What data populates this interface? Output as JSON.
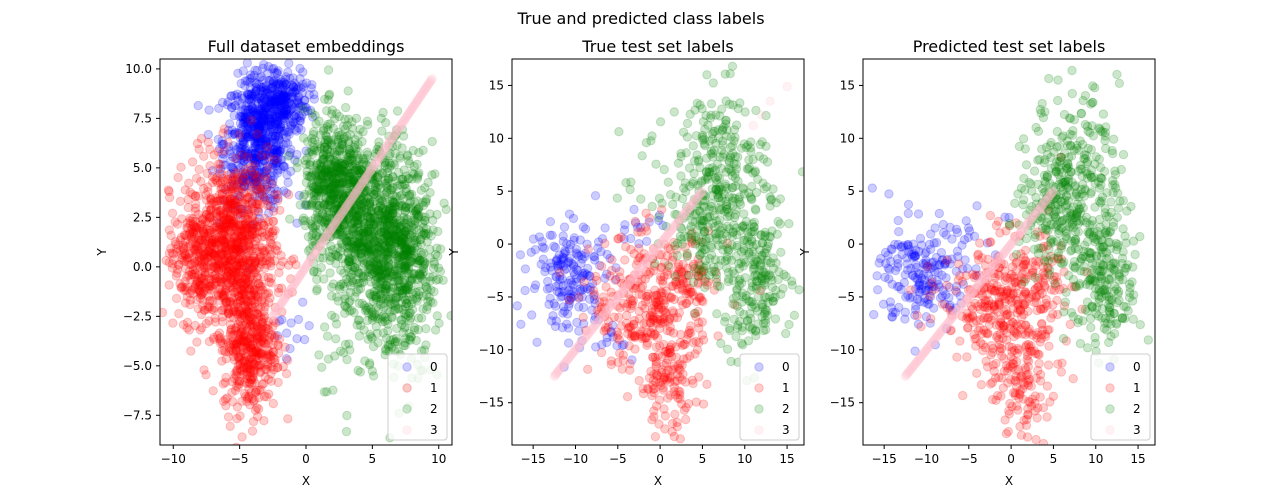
{
  "figure": {
    "suptitle": "True and predicted class labels"
  },
  "colors": {
    "class_0": "#0000ff",
    "class_1": "#ff0000",
    "class_2": "#008000",
    "class_3": "#ffc0cb"
  },
  "chart_data": [
    {
      "type": "scatter",
      "title": "Full dataset embeddings",
      "xlabel": "X",
      "ylabel": "Y",
      "xlim": [
        -11,
        11
      ],
      "ylim": [
        -9,
        10.5
      ],
      "xticks": [
        -10,
        -5,
        0,
        5,
        10
      ],
      "yticks": [
        -7.5,
        -5.0,
        -2.5,
        0.0,
        2.5,
        5.0,
        7.5,
        10.0
      ],
      "ytick_labels": [
        "−7.5",
        "−5.0",
        "−2.5",
        "0.0",
        "2.5",
        "5.0",
        "7.5",
        "10.0"
      ],
      "xtick_labels": [
        "−10",
        "−5",
        "0",
        "5",
        "10"
      ],
      "legend": {
        "placement": "lower-right",
        "entries": [
          "0",
          "1",
          "2",
          "3"
        ]
      },
      "alpha": 0.2,
      "series": [
        {
          "name": "0",
          "clusters": [
            {
              "cx": -3.6,
              "cy": 6.3,
              "sx": 1.3,
              "sy": 1.6,
              "n": 600
            },
            {
              "cx": -2.0,
              "cy": 8.4,
              "sx": 1.1,
              "sy": 0.8,
              "n": 250
            },
            {
              "cx": -1.0,
              "cy": -3.5,
              "sx": 0.9,
              "sy": 0.8,
              "n": 12
            }
          ]
        },
        {
          "name": "1",
          "clusters": [
            {
              "cx": -5.5,
              "cy": 1.0,
              "sx": 1.6,
              "sy": 2.2,
              "n": 900
            },
            {
              "cx": -4.2,
              "cy": -4.0,
              "sx": 1.0,
              "sy": 1.7,
              "n": 400
            },
            {
              "cx": -8.5,
              "cy": 0.5,
              "sx": 0.9,
              "sy": 1.6,
              "n": 200
            }
          ]
        },
        {
          "name": "2",
          "clusters": [
            {
              "cx": 2.2,
              "cy": 4.0,
              "sx": 1.2,
              "sy": 1.8,
              "n": 600
            },
            {
              "cx": 5.5,
              "cy": 1.5,
              "sx": 1.7,
              "sy": 2.3,
              "n": 900
            },
            {
              "cx": 7.5,
              "cy": 0.0,
              "sx": 1.2,
              "sy": 2.4,
              "n": 300
            },
            {
              "cx": 4.0,
              "cy": -4.5,
              "sx": 2.2,
              "sy": 1.6,
              "n": 40
            }
          ]
        },
        {
          "name": "3",
          "line": {
            "x0": -2.5,
            "y0": -2.5,
            "x1": 9.5,
            "y1": 9.5,
            "n": 200
          }
        }
      ]
    },
    {
      "type": "scatter",
      "title": "True test set labels",
      "xlabel": "X",
      "ylabel": "Y",
      "xlim": [
        -17.5,
        17.0
      ],
      "ylim": [
        -19.0,
        17.5
      ],
      "xticks": [
        -15,
        -10,
        -5,
        0,
        5,
        10,
        15
      ],
      "xtick_labels": [
        "−15",
        "−10",
        "−5",
        "0",
        "5",
        "10",
        "15"
      ],
      "yticks": [
        -15,
        -10,
        -5,
        0,
        5,
        10,
        15
      ],
      "ytick_labels": [
        "−15",
        "−10",
        "−5",
        "0",
        "5",
        "10",
        "15"
      ],
      "legend": {
        "placement": "lower-right",
        "entries": [
          "0",
          "1",
          "2",
          "3"
        ]
      },
      "alpha": 0.2,
      "series": [
        {
          "name": "0",
          "clusters": [
            {
              "cx": -10.5,
              "cy": -3.0,
              "sx": 2.5,
              "sy": 2.6,
              "n": 180
            },
            {
              "cx": -3.0,
              "cy": 2.0,
              "sx": 2.2,
              "sy": 1.2,
              "n": 15
            },
            {
              "cx": -6.0,
              "cy": -9.0,
              "sx": 1.5,
              "sy": 1.2,
              "n": 12
            }
          ]
        },
        {
          "name": "1",
          "clusters": [
            {
              "cx": -1.0,
              "cy": -5.5,
              "sx": 3.6,
              "sy": 3.2,
              "n": 320
            },
            {
              "cx": 1.0,
              "cy": -13.0,
              "sx": 1.8,
              "sy": 2.6,
              "n": 120
            },
            {
              "cx": 3.5,
              "cy": -4.0,
              "sx": 1.5,
              "sy": 2.0,
              "n": 40
            }
          ]
        },
        {
          "name": "2",
          "clusters": [
            {
              "cx": 7.5,
              "cy": 6.5,
              "sx": 2.6,
              "sy": 4.0,
              "n": 260
            },
            {
              "cx": 11.0,
              "cy": -3.5,
              "sx": 2.2,
              "sy": 3.2,
              "n": 220
            },
            {
              "cx": 4.5,
              "cy": 2.0,
              "sx": 2.0,
              "sy": 3.0,
              "n": 100
            },
            {
              "cx": -2.0,
              "cy": 6.0,
              "sx": 3.0,
              "sy": 4.0,
              "n": 18
            }
          ]
        },
        {
          "name": "3",
          "line": {
            "x0": -12.5,
            "y0": -12.5,
            "x1": 5.0,
            "y1": 5.0,
            "n": 160
          },
          "extra": [
            [
              12.0,
              12.2
            ],
            [
              13.0,
              13.5
            ],
            [
              15.0,
              14.9
            ],
            [
              11.0,
              11.2
            ]
          ]
        }
      ]
    },
    {
      "type": "scatter",
      "title": "Predicted test set labels",
      "xlabel": "X",
      "ylabel": "Y",
      "xlim": [
        -17.5,
        17.0
      ],
      "ylim": [
        -19.0,
        17.5
      ],
      "xticks": [
        -15,
        -10,
        -5,
        0,
        5,
        10,
        15
      ],
      "xtick_labels": [
        "−15",
        "−10",
        "−5",
        "0",
        "5",
        "10",
        "15"
      ],
      "yticks": [
        -15,
        -10,
        -5,
        0,
        5,
        10,
        15
      ],
      "ytick_labels": [
        "−15",
        "−10",
        "−5",
        "0",
        "5",
        "10",
        "15"
      ],
      "legend": {
        "placement": "lower-right",
        "entries": [
          "0",
          "1",
          "2",
          "3"
        ]
      },
      "alpha": 0.2,
      "series": [
        {
          "name": "0",
          "clusters": [
            {
              "cx": -10.5,
              "cy": -3.0,
              "sx": 2.5,
              "sy": 2.6,
              "n": 190
            },
            {
              "cx": -4.5,
              "cy": 1.5,
              "sx": 1.8,
              "sy": 0.9,
              "n": 14
            }
          ]
        },
        {
          "name": "1",
          "clusters": [
            {
              "cx": -1.0,
              "cy": -5.5,
              "sx": 3.6,
              "sy": 3.2,
              "n": 330
            },
            {
              "cx": 1.0,
              "cy": -13.0,
              "sx": 1.8,
              "sy": 2.6,
              "n": 120
            },
            {
              "cx": 3.5,
              "cy": -4.0,
              "sx": 1.5,
              "sy": 2.0,
              "n": 45
            }
          ]
        },
        {
          "name": "2",
          "clusters": [
            {
              "cx": 7.5,
              "cy": 6.5,
              "sx": 2.6,
              "sy": 4.0,
              "n": 270
            },
            {
              "cx": 11.0,
              "cy": -3.5,
              "sx": 2.2,
              "sy": 3.2,
              "n": 220
            },
            {
              "cx": 4.5,
              "cy": 2.0,
              "sx": 2.0,
              "sy": 3.0,
              "n": 110
            }
          ]
        },
        {
          "name": "3",
          "line": {
            "x0": -12.5,
            "y0": -12.5,
            "x1": 5.0,
            "y1": 5.0,
            "n": 160
          }
        }
      ]
    }
  ]
}
